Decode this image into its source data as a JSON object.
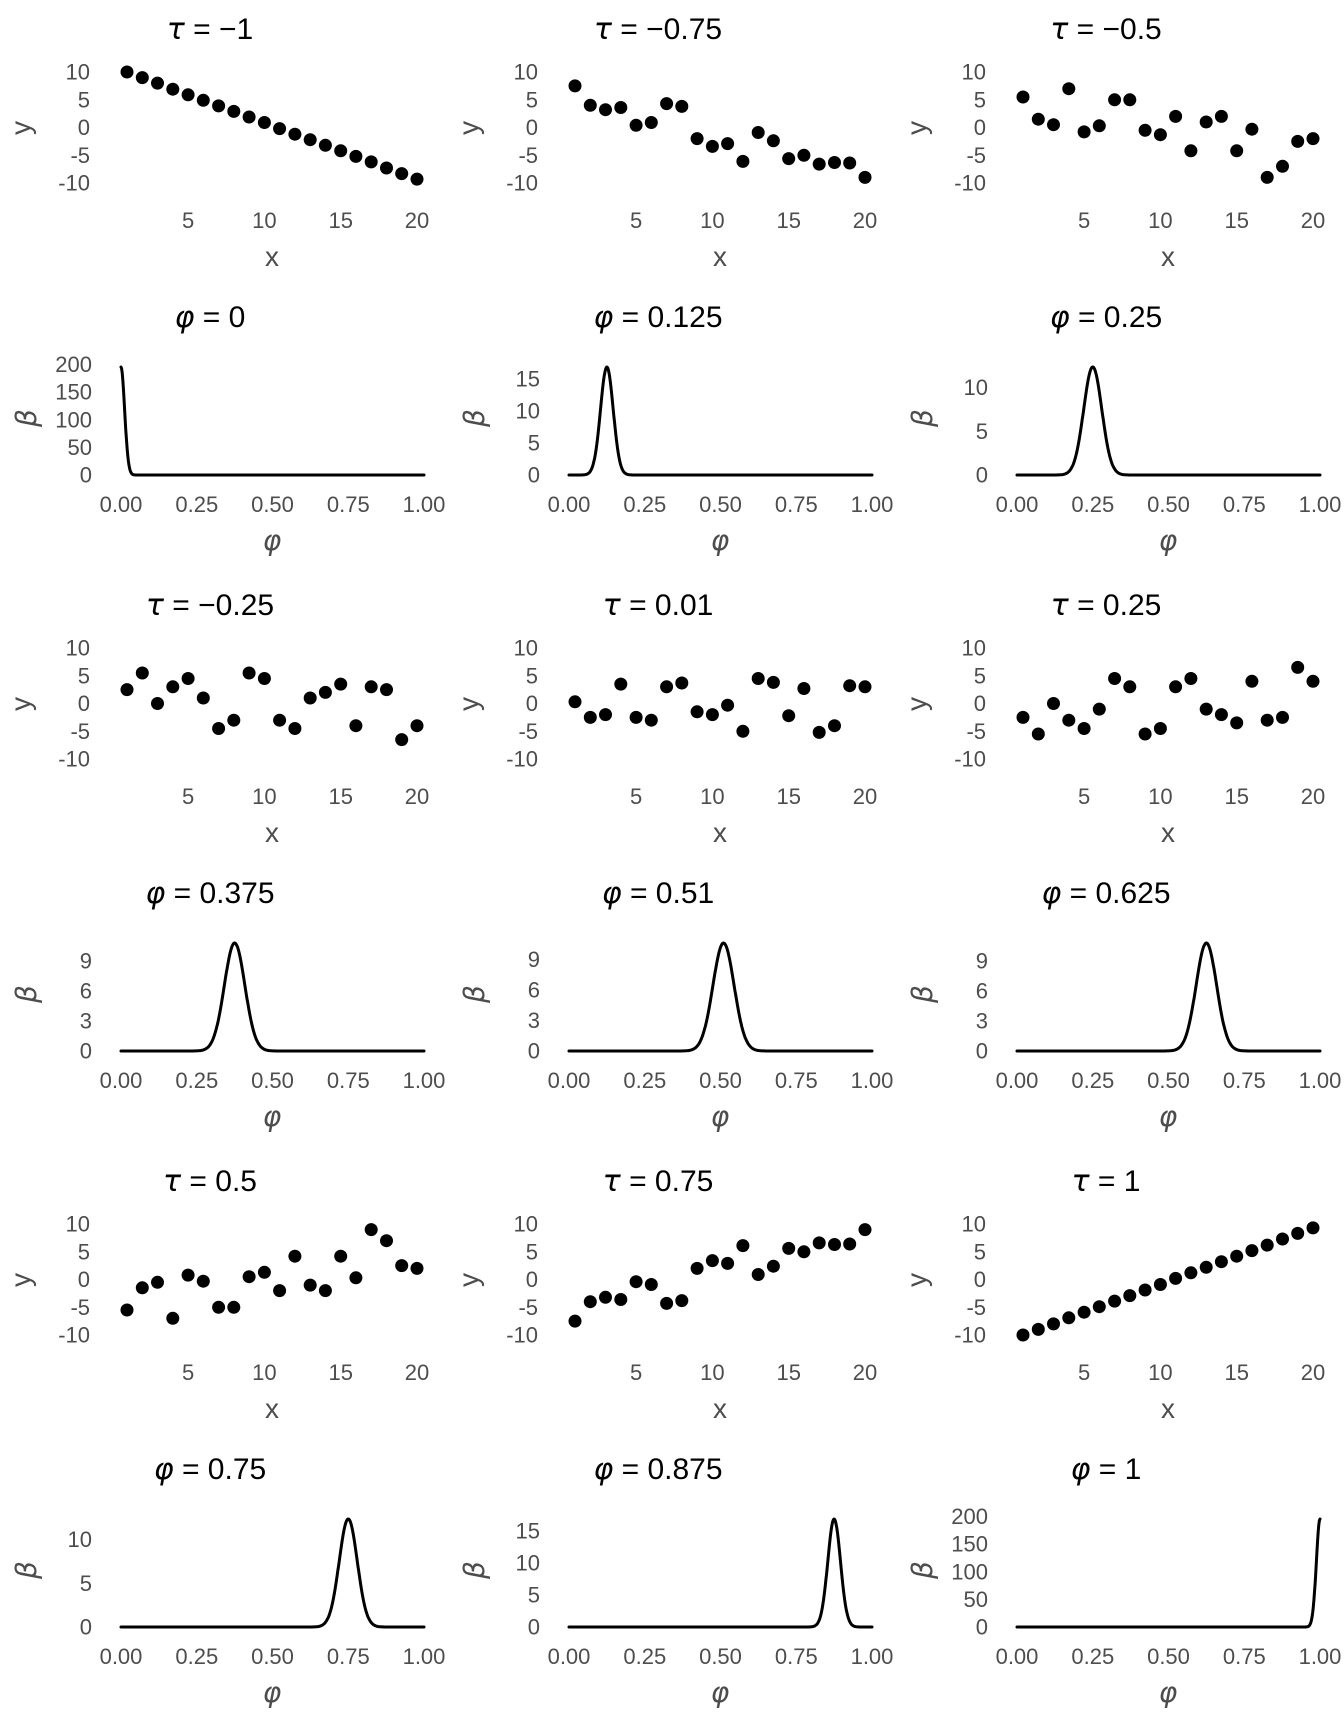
{
  "figure": {
    "background": "#ffffff",
    "title_color": "#000000",
    "tick_color": "#4d4d4d",
    "data_color": "#000000",
    "layout": "6 rows x 3 columns; rows alternate between scatter plots of y vs x (Kendall tau) and density curves of beta vs phi"
  },
  "chart_data": [
    {
      "type": "scatter",
      "title_var": "τ",
      "title_rest": " = −1",
      "tau": -1,
      "xlabel": "x",
      "ylabel": "y",
      "xlim": [
        1,
        20
      ],
      "ylim": [
        -10,
        10
      ],
      "xticks": [
        5,
        10,
        15,
        20
      ],
      "yticks": [
        10,
        5,
        0,
        -5,
        -10
      ],
      "x": [
        1,
        2,
        3,
        4,
        5,
        6,
        7,
        8,
        9,
        10,
        11,
        12,
        13,
        14,
        15,
        16,
        17,
        18,
        19,
        20
      ],
      "y": [
        10,
        9,
        8,
        6.9,
        5.9,
        4.9,
        3.9,
        2.9,
        1.9,
        0.9,
        -0.2,
        -1.2,
        -2.2,
        -3.2,
        -4.2,
        -5.2,
        -6.2,
        -7.3,
        -8.3,
        -9.3
      ]
    },
    {
      "type": "scatter",
      "title_var": "τ",
      "title_rest": " = −0.75",
      "tau": -0.75,
      "xlabel": "x",
      "ylabel": "y",
      "xlim": [
        1,
        20
      ],
      "ylim": [
        -10,
        10
      ],
      "xticks": [
        5,
        10,
        15,
        20
      ],
      "yticks": [
        10,
        5,
        0,
        -5,
        -10
      ],
      "x": [
        1,
        2,
        3,
        4,
        5,
        6,
        7,
        8,
        9,
        10,
        11,
        12,
        13,
        14,
        15,
        16,
        17,
        18,
        19,
        20
      ],
      "y": [
        7.5,
        4.0,
        3.2,
        3.6,
        0.4,
        0.9,
        4.3,
        3.8,
        -2.0,
        -3.4,
        -2.9,
        -6.1,
        -0.9,
        -2.4,
        -5.6,
        -5.0,
        -6.6,
        -6.3,
        -6.4,
        -9.0
      ]
    },
    {
      "type": "scatter",
      "title_var": "τ",
      "title_rest": " = −0.5",
      "tau": -0.5,
      "xlabel": "x",
      "ylabel": "y",
      "xlim": [
        1,
        20
      ],
      "ylim": [
        -10,
        10
      ],
      "xticks": [
        5,
        10,
        15,
        20
      ],
      "yticks": [
        10,
        5,
        0,
        -5,
        -10
      ],
      "x": [
        1,
        2,
        3,
        4,
        5,
        6,
        7,
        8,
        9,
        10,
        11,
        12,
        13,
        14,
        15,
        16,
        17,
        18,
        19,
        20
      ],
      "y": [
        5.5,
        1.5,
        0.5,
        7.0,
        -0.8,
        0.3,
        5.0,
        5.0,
        -0.5,
        -1.3,
        2.0,
        -4.2,
        1.0,
        2.0,
        -4.2,
        -0.3,
        -9.0,
        -7.0,
        -2.5,
        -2.0
      ]
    },
    {
      "type": "line",
      "title_var": "φ",
      "title_rest": " = 0",
      "phi": 0,
      "xlabel": "φ",
      "ylabel": "β",
      "xlim": [
        0,
        1
      ],
      "ylim": [
        0,
        200
      ],
      "xticks": [
        "0.00",
        "0.25",
        "0.50",
        "0.75",
        "1.00"
      ],
      "yticks": [
        0,
        50,
        100,
        150,
        200
      ],
      "curve": "narrow density spike at left edge",
      "peak_x": 0,
      "peak_y": 195,
      "sd": 0.012
    },
    {
      "type": "line",
      "title_var": "φ",
      "title_rest": " = 0.125",
      "phi": 0.125,
      "xlabel": "φ",
      "ylabel": "β",
      "xlim": [
        0,
        1
      ],
      "ylim": [
        0,
        16.8
      ],
      "xticks": [
        "0.00",
        "0.25",
        "0.50",
        "0.75",
        "1.00"
      ],
      "yticks": [
        0,
        5,
        10,
        15
      ],
      "curve": "bell-shaped density bump",
      "peak_x": 0.125,
      "peak_y": 16.8,
      "sd": 0.021
    },
    {
      "type": "line",
      "title_var": "φ",
      "title_rest": " = 0.25",
      "phi": 0.25,
      "xlabel": "φ",
      "ylabel": "β",
      "xlim": [
        0,
        1
      ],
      "ylim": [
        0,
        12.3
      ],
      "xticks": [
        "0.00",
        "0.25",
        "0.50",
        "0.75",
        "1.00"
      ],
      "yticks": [
        0,
        5,
        10
      ],
      "curve": "bell-shaped density bump",
      "peak_x": 0.25,
      "peak_y": 12.3,
      "sd": 0.03
    },
    {
      "type": "scatter",
      "title_var": "τ",
      "title_rest": " = −0.25",
      "tau": -0.25,
      "xlabel": "x",
      "ylabel": "y",
      "xlim": [
        1,
        20
      ],
      "ylim": [
        -10,
        10
      ],
      "xticks": [
        5,
        10,
        15,
        20
      ],
      "yticks": [
        10,
        5,
        0,
        -5,
        -10
      ],
      "x": [
        1,
        2,
        3,
        4,
        5,
        6,
        7,
        8,
        9,
        10,
        11,
        12,
        13,
        14,
        15,
        16,
        17,
        18,
        19,
        20
      ],
      "y": [
        2.5,
        5.5,
        0.0,
        3.0,
        4.5,
        1.0,
        -4.5,
        -3.0,
        5.5,
        4.5,
        -3.0,
        -4.5,
        1.0,
        2.0,
        3.5,
        -4.0,
        3.0,
        2.5,
        -6.5,
        -4.0
      ]
    },
    {
      "type": "scatter",
      "title_var": "τ",
      "title_rest": " = 0.01",
      "tau": 0.01,
      "xlabel": "x",
      "ylabel": "y",
      "xlim": [
        1,
        20
      ],
      "ylim": [
        -10,
        10
      ],
      "xticks": [
        5,
        10,
        15,
        20
      ],
      "yticks": [
        10,
        5,
        0,
        -5,
        -10
      ],
      "x": [
        1,
        2,
        3,
        4,
        5,
        6,
        7,
        8,
        9,
        10,
        11,
        12,
        13,
        14,
        15,
        16,
        17,
        18,
        19,
        20
      ],
      "y": [
        0.3,
        -2.5,
        -2.0,
        3.5,
        -2.5,
        -3.0,
        3.0,
        3.7,
        -1.5,
        -2.0,
        -0.3,
        -5.0,
        4.5,
        3.8,
        -2.2,
        2.7,
        -5.2,
        -4.0,
        3.2,
        3.0
      ]
    },
    {
      "type": "scatter",
      "title_var": "τ",
      "title_rest": " = 0.25",
      "tau": 0.25,
      "xlabel": "x",
      "ylabel": "y",
      "xlim": [
        1,
        20
      ],
      "ylim": [
        -10,
        10
      ],
      "xticks": [
        5,
        10,
        15,
        20
      ],
      "yticks": [
        10,
        5,
        0,
        -5,
        -10
      ],
      "x": [
        1,
        2,
        3,
        4,
        5,
        6,
        7,
        8,
        9,
        10,
        11,
        12,
        13,
        14,
        15,
        16,
        17,
        18,
        19,
        20
      ],
      "y": [
        -2.5,
        -5.5,
        0.0,
        -3.0,
        -4.5,
        -1.0,
        4.5,
        3.0,
        -5.5,
        -4.5,
        3.0,
        4.5,
        -1.0,
        -2.0,
        -3.5,
        4.0,
        -3.0,
        -2.5,
        6.5,
        4.0
      ]
    },
    {
      "type": "line",
      "title_var": "φ",
      "title_rest": " = 0.375",
      "phi": 0.375,
      "xlabel": "φ",
      "ylabel": "β",
      "xlim": [
        0,
        1
      ],
      "ylim": [
        0,
        10.8
      ],
      "xticks": [
        "0.00",
        "0.25",
        "0.50",
        "0.75",
        "1.00"
      ],
      "yticks": [
        0,
        3,
        6,
        9
      ],
      "curve": "bell-shaped density bump",
      "peak_x": 0.375,
      "peak_y": 10.8,
      "sd": 0.034
    },
    {
      "type": "line",
      "title_var": "φ",
      "title_rest": " = 0.51",
      "phi": 0.51,
      "xlabel": "φ",
      "ylabel": "β",
      "xlim": [
        0,
        1
      ],
      "ylim": [
        0,
        10.6
      ],
      "xticks": [
        "0.00",
        "0.25",
        "0.50",
        "0.75",
        "1.00"
      ],
      "yticks": [
        0,
        3,
        6,
        9
      ],
      "curve": "bell-shaped density bump",
      "peak_x": 0.51,
      "peak_y": 10.6,
      "sd": 0.035
    },
    {
      "type": "line",
      "title_var": "φ",
      "title_rest": " = 0.625",
      "phi": 0.625,
      "xlabel": "φ",
      "ylabel": "β",
      "xlim": [
        0,
        1
      ],
      "ylim": [
        0,
        10.8
      ],
      "xticks": [
        "0.00",
        "0.25",
        "0.50",
        "0.75",
        "1.00"
      ],
      "yticks": [
        0,
        3,
        6,
        9
      ],
      "curve": "bell-shaped density bump",
      "peak_x": 0.625,
      "peak_y": 10.8,
      "sd": 0.034
    },
    {
      "type": "scatter",
      "title_var": "τ",
      "title_rest": " = 0.5",
      "tau": 0.5,
      "xlabel": "x",
      "ylabel": "y",
      "xlim": [
        1,
        20
      ],
      "ylim": [
        -10,
        10
      ],
      "xticks": [
        5,
        10,
        15,
        20
      ],
      "yticks": [
        10,
        5,
        0,
        -5,
        -10
      ],
      "x": [
        1,
        2,
        3,
        4,
        5,
        6,
        7,
        8,
        9,
        10,
        11,
        12,
        13,
        14,
        15,
        16,
        17,
        18,
        19,
        20
      ],
      "y": [
        -5.5,
        -1.5,
        -0.5,
        -7.0,
        0.8,
        -0.3,
        -5.0,
        -5.0,
        0.5,
        1.3,
        -2.0,
        4.2,
        -1.0,
        -2.0,
        4.2,
        0.3,
        9.0,
        7.0,
        2.5,
        2.0
      ]
    },
    {
      "type": "scatter",
      "title_var": "τ",
      "title_rest": " = 0.75",
      "tau": 0.75,
      "xlabel": "x",
      "ylabel": "y",
      "xlim": [
        1,
        20
      ],
      "ylim": [
        -10,
        10
      ],
      "xticks": [
        5,
        10,
        15,
        20
      ],
      "yticks": [
        10,
        5,
        0,
        -5,
        -10
      ],
      "x": [
        1,
        2,
        3,
        4,
        5,
        6,
        7,
        8,
        9,
        10,
        11,
        12,
        13,
        14,
        15,
        16,
        17,
        18,
        19,
        20
      ],
      "y": [
        -7.5,
        -4.0,
        -3.2,
        -3.6,
        -0.4,
        -0.9,
        -4.3,
        -3.8,
        2.0,
        3.4,
        2.9,
        6.1,
        0.9,
        2.4,
        5.6,
        5.0,
        6.6,
        6.3,
        6.4,
        9.0
      ]
    },
    {
      "type": "scatter",
      "title_var": "τ",
      "title_rest": " = 1",
      "tau": 1,
      "xlabel": "x",
      "ylabel": "y",
      "xlim": [
        1,
        20
      ],
      "ylim": [
        -10,
        10
      ],
      "xticks": [
        5,
        10,
        15,
        20
      ],
      "yticks": [
        10,
        5,
        0,
        -5,
        -10
      ],
      "x": [
        1,
        2,
        3,
        4,
        5,
        6,
        7,
        8,
        9,
        10,
        11,
        12,
        13,
        14,
        15,
        16,
        17,
        18,
        19,
        20
      ],
      "y": [
        -10,
        -9,
        -8,
        -6.9,
        -5.9,
        -4.9,
        -3.9,
        -2.9,
        -1.9,
        -0.9,
        0.2,
        1.2,
        2.2,
        3.2,
        4.2,
        5.2,
        6.2,
        7.3,
        8.3,
        9.3
      ]
    },
    {
      "type": "line",
      "title_var": "φ",
      "title_rest": " = 0.75",
      "phi": 0.75,
      "xlabel": "φ",
      "ylabel": "β",
      "xlim": [
        0,
        1
      ],
      "ylim": [
        0,
        12.3
      ],
      "xticks": [
        "0.00",
        "0.25",
        "0.50",
        "0.75",
        "1.00"
      ],
      "yticks": [
        0,
        5,
        10
      ],
      "curve": "bell-shaped density bump",
      "peak_x": 0.75,
      "peak_y": 12.3,
      "sd": 0.03
    },
    {
      "type": "line",
      "title_var": "φ",
      "title_rest": " = 0.875",
      "phi": 0.875,
      "xlabel": "φ",
      "ylabel": "β",
      "xlim": [
        0,
        1
      ],
      "ylim": [
        0,
        16.8
      ],
      "xticks": [
        "0.00",
        "0.25",
        "0.50",
        "0.75",
        "1.00"
      ],
      "yticks": [
        0,
        5,
        10,
        15
      ],
      "curve": "bell-shaped density bump",
      "peak_x": 0.875,
      "peak_y": 16.8,
      "sd": 0.021
    },
    {
      "type": "line",
      "title_var": "φ",
      "title_rest": " = 1",
      "phi": 1,
      "xlabel": "φ",
      "ylabel": "β",
      "xlim": [
        0,
        1
      ],
      "ylim": [
        0,
        200
      ],
      "xticks": [
        "0.00",
        "0.25",
        "0.50",
        "0.75",
        "1.00"
      ],
      "yticks": [
        0,
        50,
        100,
        150,
        200
      ],
      "curve": "narrow density spike at right edge",
      "peak_x": 1,
      "peak_y": 195,
      "sd": 0.012
    }
  ]
}
